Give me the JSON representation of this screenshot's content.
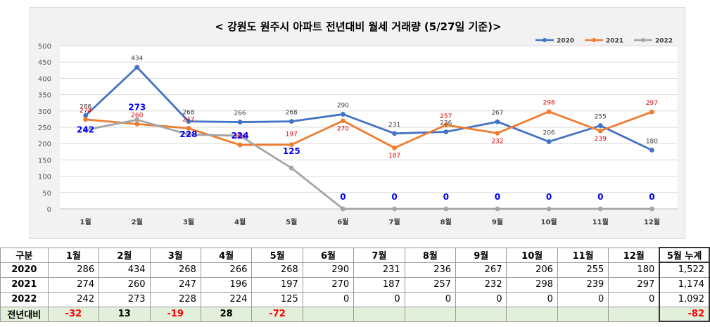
{
  "chart_data": {
    "type": "line",
    "title": "< 강원도 원주시  아파트 전년대비 월세 거래량 (5/27일 기준)>",
    "categories": [
      "1월",
      "2월",
      "3월",
      "4월",
      "5월",
      "6월",
      "7월",
      "8월",
      "9월",
      "10월",
      "11월",
      "12월"
    ],
    "ylim": [
      0,
      500
    ],
    "yticks": [
      0,
      50,
      100,
      150,
      200,
      250,
      300,
      350,
      400,
      450,
      500
    ],
    "grid": true,
    "legend_position": "top-right",
    "series": [
      {
        "name": "2020",
        "color": "#4472c4",
        "values": [
          286,
          434,
          268,
          266,
          268,
          290,
          231,
          236,
          267,
          206,
          255,
          180
        ]
      },
      {
        "name": "2021",
        "color": "#ed7d31",
        "values": [
          274,
          260,
          247,
          196,
          197,
          270,
          187,
          257,
          232,
          298,
          239,
          297
        ]
      },
      {
        "name": "2022",
        "color": "#a5a5a5",
        "values": [
          242,
          273,
          228,
          224,
          125,
          0,
          0,
          0,
          0,
          0,
          0,
          0
        ]
      }
    ]
  },
  "table": {
    "headers": [
      "구분",
      "1월",
      "2월",
      "3월",
      "4월",
      "5월",
      "6월",
      "7월",
      "8월",
      "9월",
      "10월",
      "11월",
      "12월",
      "5월 누계"
    ],
    "rows": [
      {
        "label": "2020",
        "cells": [
          "286",
          "434",
          "268",
          "266",
          "268",
          "290",
          "231",
          "236",
          "267",
          "206",
          "255",
          "180",
          "1,522"
        ]
      },
      {
        "label": "2021",
        "cells": [
          "274",
          "260",
          "247",
          "196",
          "197",
          "270",
          "187",
          "257",
          "232",
          "298",
          "239",
          "297",
          "1,174"
        ]
      },
      {
        "label": "2022",
        "cells": [
          "242",
          "273",
          "228",
          "224",
          "125",
          "0",
          "0",
          "0",
          "0",
          "0",
          "0",
          "0",
          "1,092"
        ]
      }
    ],
    "diff_row": {
      "label": "전년대비",
      "cells": [
        "-32",
        "13",
        "-19",
        "28",
        "-72",
        "",
        "",
        "",
        "",
        "",
        "",
        "",
        "-82"
      ]
    }
  }
}
